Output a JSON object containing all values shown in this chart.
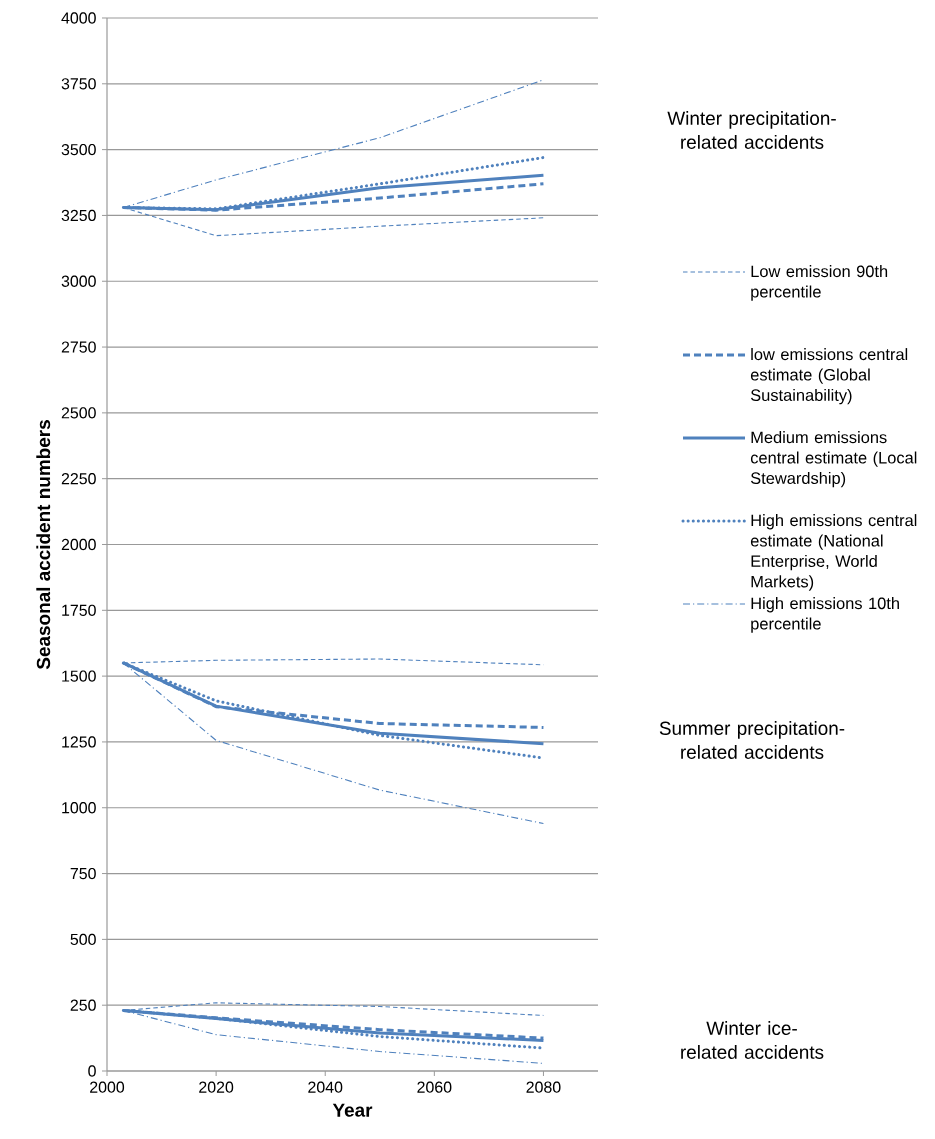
{
  "chart_data": {
    "type": "line",
    "xlabel": "Year",
    "ylabel": "Seasonal accident numbers",
    "x": [
      2003,
      2020,
      2050,
      2080
    ],
    "xlim": [
      2000,
      2090
    ],
    "xticks": [
      2000,
      2020,
      2040,
      2060,
      2080
    ],
    "ylim": [
      0,
      4000
    ],
    "yticks": [
      0,
      250,
      500,
      750,
      1000,
      1250,
      1500,
      1750,
      2000,
      2250,
      2500,
      2750,
      3000,
      3250,
      3500,
      3750,
      4000
    ],
    "grid": "y",
    "legend": "right",
    "annotations": [
      "Winter precipitation-related accidents",
      "Summer precipitation-related accidents",
      "Winter ice-related accidents"
    ],
    "series": [
      {
        "name": "Low emission 90th percentile",
        "color": "#4f81bd",
        "line_style": "dashed",
        "values": [
          3280,
          3173,
          3209,
          3241
        ]
      },
      {
        "name": "low emissions central estimate (Global Sustainability)",
        "color": "#4f81bd",
        "line_style": "long dashed",
        "values": [
          3280,
          3270,
          3316,
          3370
        ]
      },
      {
        "name": "Medium emissions central estimate (Local Stewardship)",
        "color": "#4f81bd",
        "line_style": "solid",
        "values": [
          3280,
          3272,
          3355,
          3403
        ]
      },
      {
        "name": "High emissions central estimate (National Enterprise, World Markets)",
        "color": "#4f81bd",
        "line_style": "dotted",
        "values": [
          3280,
          3275,
          3370,
          3470
        ]
      },
      {
        "name": "High emissions 10th percentile",
        "color": "#4f81bd",
        "line_style": "dashdot",
        "values": [
          3280,
          3385,
          3545,
          3765
        ]
      },
      {
        "color": "#4f81bd",
        "line_style": "dashed",
        "values": [
          1550,
          1560,
          1565,
          1543
        ]
      },
      {
        "color": "#4f81bd",
        "line_style": "long dashed",
        "values": [
          1550,
          1384,
          1320,
          1305
        ]
      },
      {
        "color": "#4f81bd",
        "line_style": "solid",
        "values": [
          1550,
          1386,
          1283,
          1243
        ]
      },
      {
        "color": "#4f81bd",
        "line_style": "dotted",
        "values": [
          1550,
          1406,
          1275,
          1189
        ]
      },
      {
        "color": "#4f81bd",
        "line_style": "dashdot",
        "values": [
          1550,
          1256,
          1067,
          940
        ]
      },
      {
        "color": "#4f81bd",
        "line_style": "dashed",
        "values": [
          230,
          259,
          245,
          211
        ]
      },
      {
        "color": "#4f81bd",
        "line_style": "long dashed",
        "values": [
          230,
          202,
          157,
          125
        ]
      },
      {
        "color": "#4f81bd",
        "line_style": "solid",
        "values": [
          230,
          199,
          144,
          116
        ]
      },
      {
        "color": "#4f81bd",
        "line_style": "dotted",
        "values": [
          230,
          200,
          131,
          87
        ]
      },
      {
        "color": "#4f81bd",
        "line_style": "dashdot",
        "values": [
          230,
          138,
          74,
          29
        ]
      }
    ]
  }
}
